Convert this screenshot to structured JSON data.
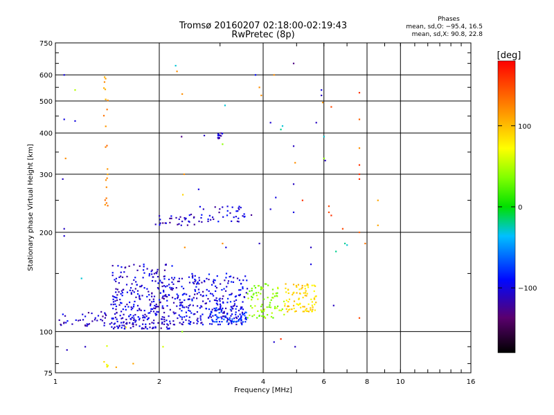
{
  "header": {
    "title": "Tromsø 20160207 02:18:00-02:19:43",
    "subtitle": "RwPretec (8p)",
    "phases_label": "Phases",
    "stats_o": "mean, sd,O: −95.4, 16.5",
    "stats_x": "mean, sd,X:  90.8, 22.8"
  },
  "chart_data": {
    "type": "scatter",
    "xlabel": "Frequency [MHz]",
    "ylabel": "Stationary phase Virtual Height [km]",
    "xscale": "log",
    "yscale": "log",
    "xlim": [
      1,
      16
    ],
    "ylim": [
      75,
      750
    ],
    "x_ticks": [
      1,
      2,
      4,
      6,
      8,
      10,
      16
    ],
    "x_tick_labels": [
      "1",
      "2",
      "4",
      "6",
      "8",
      "10",
      "16"
    ],
    "y_ticks": [
      75,
      100,
      200,
      300,
      400,
      500,
      600,
      750
    ],
    "y_tick_labels": [
      "75",
      "100",
      "200",
      "300",
      "400",
      "500",
      "600",
      "750"
    ],
    "grid": true,
    "colorbar": {
      "label": "[deg]",
      "range": [
        -180,
        180
      ],
      "ticks": [
        100,
        0,
        -100
      ],
      "tick_labels": [
        "100",
        "0",
        "−100"
      ]
    },
    "clusters": [
      {
        "x": [
          1.45,
          2.2
        ],
        "y": [
          102,
          160
        ],
        "phase": -105,
        "count": 320
      },
      {
        "x": [
          2.2,
          3.6
        ],
        "y": [
          105,
          150
        ],
        "phase": -100,
        "count": 280
      },
      {
        "x": [
          2.8,
          3.6
        ],
        "y": [
          107,
          118
        ],
        "phase": -80,
        "count": 60
      },
      {
        "x": [
          3.6,
          4.6
        ],
        "y": [
          110,
          140
        ],
        "phase": 40,
        "count": 80
      },
      {
        "x": [
          4.6,
          5.7
        ],
        "y": [
          115,
          140
        ],
        "phase": 90,
        "count": 90
      },
      {
        "x": [
          1.02,
          1.45
        ],
        "y": [
          104,
          115
        ],
        "phase": -110,
        "count": 40
      },
      {
        "x": [
          1.95,
          2.6
        ],
        "y": [
          210,
          230
        ],
        "phase": -110,
        "count": 30
      },
      {
        "x": [
          2.6,
          3.7
        ],
        "y": [
          215,
          240
        ],
        "phase": -105,
        "count": 40
      },
      {
        "x": [
          2.95,
          3.05
        ],
        "y": [
          385,
          400
        ],
        "phase": -110,
        "count": 12
      },
      {
        "x": [
          1.38,
          1.42
        ],
        "y": [
          240,
          620
        ],
        "phase": 120,
        "count": 22
      },
      {
        "x": [
          1.38,
          1.42
        ],
        "y": [
          78,
          95
        ],
        "phase": 80,
        "count": 6
      }
    ],
    "sparse_points": [
      {
        "x": 1.06,
        "y": 600,
        "phase": -100
      },
      {
        "x": 1.06,
        "y": 440,
        "phase": -100
      },
      {
        "x": 1.07,
        "y": 335,
        "phase": 120
      },
      {
        "x": 1.05,
        "y": 290,
        "phase": -110
      },
      {
        "x": 1.06,
        "y": 195,
        "phase": -105
      },
      {
        "x": 1.06,
        "y": 205,
        "phase": -110
      },
      {
        "x": 1.14,
        "y": 540,
        "phase": 50
      },
      {
        "x": 1.14,
        "y": 435,
        "phase": -100
      },
      {
        "x": 1.22,
        "y": 90,
        "phase": -110
      },
      {
        "x": 1.08,
        "y": 88,
        "phase": -110
      },
      {
        "x": 1.19,
        "y": 145,
        "phase": -30
      },
      {
        "x": 2.23,
        "y": 640,
        "phase": -30
      },
      {
        "x": 2.25,
        "y": 615,
        "phase": 120
      },
      {
        "x": 2.33,
        "y": 525,
        "phase": 120
      },
      {
        "x": 2.32,
        "y": 390,
        "phase": -130
      },
      {
        "x": 2.36,
        "y": 300,
        "phase": 120
      },
      {
        "x": 2.34,
        "y": 260,
        "phase": 90
      },
      {
        "x": 2.37,
        "y": 180,
        "phase": 120
      },
      {
        "x": 2.33,
        "y": 100,
        "phase": 40
      },
      {
        "x": 2.7,
        "y": 393,
        "phase": -110
      },
      {
        "x": 2.6,
        "y": 270,
        "phase": -100
      },
      {
        "x": 3.1,
        "y": 485,
        "phase": -30
      },
      {
        "x": 3.05,
        "y": 370,
        "phase": 40
      },
      {
        "x": 3.05,
        "y": 185,
        "phase": 120
      },
      {
        "x": 3.12,
        "y": 180,
        "phase": -100
      },
      {
        "x": 3.8,
        "y": 600,
        "phase": -90
      },
      {
        "x": 3.9,
        "y": 550,
        "phase": 120
      },
      {
        "x": 3.95,
        "y": 520,
        "phase": 120
      },
      {
        "x": 4.2,
        "y": 430,
        "phase": -105
      },
      {
        "x": 4.3,
        "y": 600,
        "phase": 120
      },
      {
        "x": 4.5,
        "y": 410,
        "phase": -20
      },
      {
        "x": 4.55,
        "y": 420,
        "phase": -30
      },
      {
        "x": 4.9,
        "y": 650,
        "phase": -130
      },
      {
        "x": 4.9,
        "y": 365,
        "phase": -110
      },
      {
        "x": 4.9,
        "y": 280,
        "phase": -110
      },
      {
        "x": 4.9,
        "y": 230,
        "phase": -100
      },
      {
        "x": 4.95,
        "y": 325,
        "phase": 120
      },
      {
        "x": 4.2,
        "y": 235,
        "phase": -105
      },
      {
        "x": 4.35,
        "y": 255,
        "phase": -100
      },
      {
        "x": 3.9,
        "y": 185,
        "phase": -110
      },
      {
        "x": 5.9,
        "y": 540,
        "phase": -100
      },
      {
        "x": 5.9,
        "y": 520,
        "phase": -110
      },
      {
        "x": 5.95,
        "y": 495,
        "phase": 120
      },
      {
        "x": 6.3,
        "y": 480,
        "phase": 150
      },
      {
        "x": 5.7,
        "y": 430,
        "phase": -110
      },
      {
        "x": 6.0,
        "y": 390,
        "phase": -30
      },
      {
        "x": 6.0,
        "y": 335,
        "phase": 40
      },
      {
        "x": 6.05,
        "y": 330,
        "phase": -110
      },
      {
        "x": 6.2,
        "y": 240,
        "phase": 150
      },
      {
        "x": 6.2,
        "y": 230,
        "phase": 150
      },
      {
        "x": 6.3,
        "y": 225,
        "phase": 160
      },
      {
        "x": 6.8,
        "y": 205,
        "phase": 150
      },
      {
        "x": 6.9,
        "y": 185,
        "phase": -20
      },
      {
        "x": 7.0,
        "y": 183,
        "phase": -30
      },
      {
        "x": 6.5,
        "y": 175,
        "phase": -20
      },
      {
        "x": 7.6,
        "y": 530,
        "phase": 160
      },
      {
        "x": 7.6,
        "y": 440,
        "phase": 140
      },
      {
        "x": 7.6,
        "y": 360,
        "phase": 120
      },
      {
        "x": 7.6,
        "y": 320,
        "phase": 160
      },
      {
        "x": 7.6,
        "y": 300,
        "phase": 160
      },
      {
        "x": 7.6,
        "y": 290,
        "phase": 160
      },
      {
        "x": 7.6,
        "y": 200,
        "phase": 140
      },
      {
        "x": 7.6,
        "y": 110,
        "phase": 150
      },
      {
        "x": 7.9,
        "y": 185,
        "phase": 130
      },
      {
        "x": 8.6,
        "y": 250,
        "phase": 110
      },
      {
        "x": 8.6,
        "y": 210,
        "phase": 110
      },
      {
        "x": 5.2,
        "y": 250,
        "phase": 160
      },
      {
        "x": 5.5,
        "y": 180,
        "phase": -110
      },
      {
        "x": 5.5,
        "y": 160,
        "phase": -100
      },
      {
        "x": 6.4,
        "y": 120,
        "phase": -110
      },
      {
        "x": 4.5,
        "y": 95,
        "phase": 160
      },
      {
        "x": 4.95,
        "y": 90,
        "phase": -110
      },
      {
        "x": 4.3,
        "y": 93,
        "phase": -105
      },
      {
        "x": 1.5,
        "y": 78,
        "phase": 110
      },
      {
        "x": 1.68,
        "y": 80,
        "phase": 110
      },
      {
        "x": 1.6,
        "y": 103,
        "phase": 80
      },
      {
        "x": 2.05,
        "y": 90,
        "phase": 60
      }
    ]
  }
}
